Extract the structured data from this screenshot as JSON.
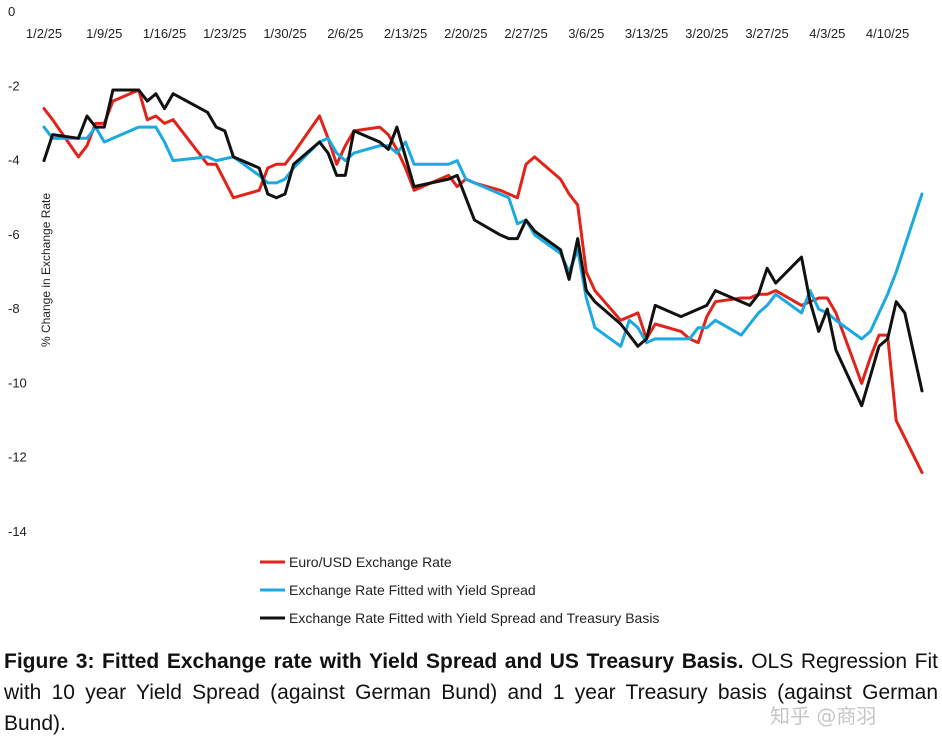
{
  "chart_data": {
    "type": "line",
    "title": "",
    "xlabel": "",
    "ylabel": "% Change in Exchange Rate",
    "ylim": [
      -14,
      0
    ],
    "yticks": [
      0,
      -2,
      -4,
      -6,
      -8,
      -10,
      -12,
      -14
    ],
    "x_tick_labels": [
      "1/2/25",
      "1/9/25",
      "1/16/25",
      "1/23/25",
      "1/30/25",
      "2/6/25",
      "2/13/25",
      "2/20/25",
      "2/27/25",
      "3/6/25",
      "3/13/25",
      "3/20/25",
      "3/27/25",
      "4/3/25",
      "4/10/25"
    ],
    "x_start": "2025-01-02",
    "x_end": "2025-04-14",
    "legend_position": "bottom-left",
    "series": [
      {
        "name": "Euro/USD Exchange Rate",
        "color": "#e2231a",
        "points": [
          [
            "2025-01-02",
            -2.6
          ],
          [
            "2025-01-03",
            -2.9
          ],
          [
            "2025-01-06",
            -3.9
          ],
          [
            "2025-01-07",
            -3.6
          ],
          [
            "2025-01-08",
            -3.0
          ],
          [
            "2025-01-09",
            -3.0
          ],
          [
            "2025-01-10",
            -2.4
          ],
          [
            "2025-01-13",
            -2.1
          ],
          [
            "2025-01-14",
            -2.9
          ],
          [
            "2025-01-15",
            -2.8
          ],
          [
            "2025-01-16",
            -3.0
          ],
          [
            "2025-01-17",
            -2.9
          ],
          [
            "2025-01-21",
            -4.1
          ],
          [
            "2025-01-22",
            -4.1
          ],
          [
            "2025-01-24",
            -5.0
          ],
          [
            "2025-01-27",
            -4.8
          ],
          [
            "2025-01-28",
            -4.2
          ],
          [
            "2025-01-29",
            -4.1
          ],
          [
            "2025-01-30",
            -4.1
          ],
          [
            "2025-01-31",
            -3.8
          ],
          [
            "2025-02-03",
            -2.8
          ],
          [
            "2025-02-04",
            -3.4
          ],
          [
            "2025-02-05",
            -4.1
          ],
          [
            "2025-02-06",
            -3.6
          ],
          [
            "2025-02-07",
            -3.2
          ],
          [
            "2025-02-10",
            -3.1
          ],
          [
            "2025-02-11",
            -3.3
          ],
          [
            "2025-02-12",
            -3.7
          ],
          [
            "2025-02-13",
            -4.2
          ],
          [
            "2025-02-14",
            -4.8
          ],
          [
            "2025-02-18",
            -4.4
          ],
          [
            "2025-02-19",
            -4.7
          ],
          [
            "2025-02-20",
            -4.5
          ],
          [
            "2025-02-21",
            -4.6
          ],
          [
            "2025-02-24",
            -4.8
          ],
          [
            "2025-02-25",
            -4.9
          ],
          [
            "2025-02-26",
            -5.0
          ],
          [
            "2025-02-27",
            -4.1
          ],
          [
            "2025-02-28",
            -3.9
          ],
          [
            "2025-03-03",
            -4.5
          ],
          [
            "2025-03-04",
            -4.9
          ],
          [
            "2025-03-05",
            -5.2
          ],
          [
            "2025-03-06",
            -7.0
          ],
          [
            "2025-03-07",
            -7.5
          ],
          [
            "2025-03-10",
            -8.3
          ],
          [
            "2025-03-11",
            -8.2
          ],
          [
            "2025-03-12",
            -8.1
          ],
          [
            "2025-03-13",
            -8.8
          ],
          [
            "2025-03-14",
            -8.4
          ],
          [
            "2025-03-17",
            -8.6
          ],
          [
            "2025-03-18",
            -8.8
          ],
          [
            "2025-03-19",
            -8.9
          ],
          [
            "2025-03-20",
            -8.2
          ],
          [
            "2025-03-21",
            -7.8
          ],
          [
            "2025-03-24",
            -7.7
          ],
          [
            "2025-03-25",
            -7.7
          ],
          [
            "2025-03-26",
            -7.6
          ],
          [
            "2025-03-27",
            -7.6
          ],
          [
            "2025-03-28",
            -7.5
          ],
          [
            "2025-03-31",
            -7.9
          ],
          [
            "2025-04-01",
            -7.8
          ],
          [
            "2025-04-02",
            -7.7
          ],
          [
            "2025-04-03",
            -7.7
          ],
          [
            "2025-04-04",
            -8.1
          ],
          [
            "2025-04-07",
            -10.0
          ],
          [
            "2025-04-08",
            -9.3
          ],
          [
            "2025-04-09",
            -8.7
          ],
          [
            "2025-04-10",
            -8.7
          ],
          [
            "2025-04-11",
            -11.0
          ],
          [
            "2025-04-14",
            -12.4
          ]
        ]
      },
      {
        "name": "Exchange Rate Fitted with Yield Spread",
        "color": "#1ba9e1",
        "points": [
          [
            "2025-01-02",
            -3.1
          ],
          [
            "2025-01-03",
            -3.4
          ],
          [
            "2025-01-06",
            -3.4
          ],
          [
            "2025-01-07",
            -3.4
          ],
          [
            "2025-01-08",
            -3.1
          ],
          [
            "2025-01-09",
            -3.5
          ],
          [
            "2025-01-10",
            -3.4
          ],
          [
            "2025-01-13",
            -3.1
          ],
          [
            "2025-01-14",
            -3.1
          ],
          [
            "2025-01-15",
            -3.1
          ],
          [
            "2025-01-16",
            -3.5
          ],
          [
            "2025-01-17",
            -4.0
          ],
          [
            "2025-01-21",
            -3.9
          ],
          [
            "2025-01-22",
            -4.0
          ],
          [
            "2025-01-24",
            -3.9
          ],
          [
            "2025-01-27",
            -4.4
          ],
          [
            "2025-01-28",
            -4.6
          ],
          [
            "2025-01-29",
            -4.6
          ],
          [
            "2025-01-30",
            -4.5
          ],
          [
            "2025-01-31",
            -4.2
          ],
          [
            "2025-02-03",
            -3.5
          ],
          [
            "2025-02-04",
            -3.4
          ],
          [
            "2025-02-05",
            -3.8
          ],
          [
            "2025-02-06",
            -4.0
          ],
          [
            "2025-02-07",
            -3.8
          ],
          [
            "2025-02-10",
            -3.6
          ],
          [
            "2025-02-11",
            -3.6
          ],
          [
            "2025-02-12",
            -3.8
          ],
          [
            "2025-02-13",
            -3.5
          ],
          [
            "2025-02-14",
            -4.1
          ],
          [
            "2025-02-18",
            -4.1
          ],
          [
            "2025-02-19",
            -4.0
          ],
          [
            "2025-02-20",
            -4.5
          ],
          [
            "2025-02-21",
            -4.6
          ],
          [
            "2025-02-24",
            -4.9
          ],
          [
            "2025-02-25",
            -5.0
          ],
          [
            "2025-02-26",
            -5.7
          ],
          [
            "2025-02-27",
            -5.6
          ],
          [
            "2025-02-28",
            -6.0
          ],
          [
            "2025-03-03",
            -6.5
          ],
          [
            "2025-03-04",
            -7.0
          ],
          [
            "2025-03-05",
            -6.4
          ],
          [
            "2025-03-06",
            -7.7
          ],
          [
            "2025-03-07",
            -8.5
          ],
          [
            "2025-03-10",
            -9.0
          ],
          [
            "2025-03-11",
            -8.3
          ],
          [
            "2025-03-12",
            -8.5
          ],
          [
            "2025-03-13",
            -8.9
          ],
          [
            "2025-03-14",
            -8.8
          ],
          [
            "2025-03-17",
            -8.8
          ],
          [
            "2025-03-18",
            -8.8
          ],
          [
            "2025-03-19",
            -8.5
          ],
          [
            "2025-03-20",
            -8.5
          ],
          [
            "2025-03-21",
            -8.3
          ],
          [
            "2025-03-24",
            -8.7
          ],
          [
            "2025-03-25",
            -8.4
          ],
          [
            "2025-03-26",
            -8.1
          ],
          [
            "2025-03-27",
            -7.9
          ],
          [
            "2025-03-28",
            -7.6
          ],
          [
            "2025-03-31",
            -8.1
          ],
          [
            "2025-04-01",
            -7.5
          ],
          [
            "2025-04-02",
            -8.0
          ],
          [
            "2025-04-03",
            -8.1
          ],
          [
            "2025-04-04",
            -8.3
          ],
          [
            "2025-04-07",
            -8.8
          ],
          [
            "2025-04-08",
            -8.6
          ],
          [
            "2025-04-09",
            -8.1
          ],
          [
            "2025-04-10",
            -7.6
          ],
          [
            "2025-04-11",
            -7.0
          ],
          [
            "2025-04-14",
            -4.9
          ]
        ]
      },
      {
        "name": "Exchange Rate Fitted with Yield Spread and Treasury Basis",
        "color": "#111111",
        "points": [
          [
            "2025-01-02",
            -4.0
          ],
          [
            "2025-01-03",
            -3.3
          ],
          [
            "2025-01-06",
            -3.4
          ],
          [
            "2025-01-07",
            -2.8
          ],
          [
            "2025-01-08",
            -3.1
          ],
          [
            "2025-01-09",
            -3.1
          ],
          [
            "2025-01-10",
            -2.1
          ],
          [
            "2025-01-13",
            -2.1
          ],
          [
            "2025-01-14",
            -2.4
          ],
          [
            "2025-01-15",
            -2.2
          ],
          [
            "2025-01-16",
            -2.6
          ],
          [
            "2025-01-17",
            -2.2
          ],
          [
            "2025-01-21",
            -2.7
          ],
          [
            "2025-01-22",
            -3.1
          ],
          [
            "2025-01-23",
            -3.2
          ],
          [
            "2025-01-24",
            -3.9
          ],
          [
            "2025-01-27",
            -4.2
          ],
          [
            "2025-01-28",
            -4.9
          ],
          [
            "2025-01-29",
            -5.0
          ],
          [
            "2025-01-30",
            -4.9
          ],
          [
            "2025-01-31",
            -4.1
          ],
          [
            "2025-02-03",
            -3.5
          ],
          [
            "2025-02-04",
            -3.8
          ],
          [
            "2025-02-05",
            -4.4
          ],
          [
            "2025-02-06",
            -4.4
          ],
          [
            "2025-02-07",
            -3.2
          ],
          [
            "2025-02-10",
            -3.5
          ],
          [
            "2025-02-11",
            -3.7
          ],
          [
            "2025-02-12",
            -3.1
          ],
          [
            "2025-02-13",
            -3.9
          ],
          [
            "2025-02-14",
            -4.7
          ],
          [
            "2025-02-18",
            -4.5
          ],
          [
            "2025-02-19",
            -4.4
          ],
          [
            "2025-02-20",
            -5.0
          ],
          [
            "2025-02-21",
            -5.6
          ],
          [
            "2025-02-24",
            -6.0
          ],
          [
            "2025-02-25",
            -6.1
          ],
          [
            "2025-02-26",
            -6.1
          ],
          [
            "2025-02-27",
            -5.6
          ],
          [
            "2025-02-28",
            -5.9
          ],
          [
            "2025-03-03",
            -6.4
          ],
          [
            "2025-03-04",
            -7.2
          ],
          [
            "2025-03-05",
            -6.1
          ],
          [
            "2025-03-06",
            -7.5
          ],
          [
            "2025-03-07",
            -7.8
          ],
          [
            "2025-03-10",
            -8.4
          ],
          [
            "2025-03-11",
            -8.7
          ],
          [
            "2025-03-12",
            -9.0
          ],
          [
            "2025-03-13",
            -8.8
          ],
          [
            "2025-03-14",
            -7.9
          ],
          [
            "2025-03-17",
            -8.2
          ],
          [
            "2025-03-18",
            -8.1
          ],
          [
            "2025-03-19",
            -8.0
          ],
          [
            "2025-03-20",
            -7.9
          ],
          [
            "2025-03-21",
            -7.5
          ],
          [
            "2025-03-24",
            -7.8
          ],
          [
            "2025-03-25",
            -7.9
          ],
          [
            "2025-03-26",
            -7.6
          ],
          [
            "2025-03-27",
            -6.9
          ],
          [
            "2025-03-28",
            -7.3
          ],
          [
            "2025-03-31",
            -6.6
          ],
          [
            "2025-04-01",
            -7.8
          ],
          [
            "2025-04-02",
            -8.6
          ],
          [
            "2025-04-03",
            -8.0
          ],
          [
            "2025-04-04",
            -9.1
          ],
          [
            "2025-04-07",
            -10.6
          ],
          [
            "2025-04-08",
            -9.8
          ],
          [
            "2025-04-09",
            -9.0
          ],
          [
            "2025-04-10",
            -8.8
          ],
          [
            "2025-04-11",
            -7.8
          ],
          [
            "2025-04-12",
            -8.1
          ],
          [
            "2025-04-14",
            -10.2
          ]
        ]
      }
    ]
  },
  "caption": {
    "bold": "Figure 3: Fitted Exchange rate with Yield Spread and US Treasury Basis.",
    "text": "OLS Regression Fit with 10 year Yield Spread (against German Bund) and 1 year Treasury basis (against German Bund)."
  },
  "watermark": "知乎 @商羽"
}
